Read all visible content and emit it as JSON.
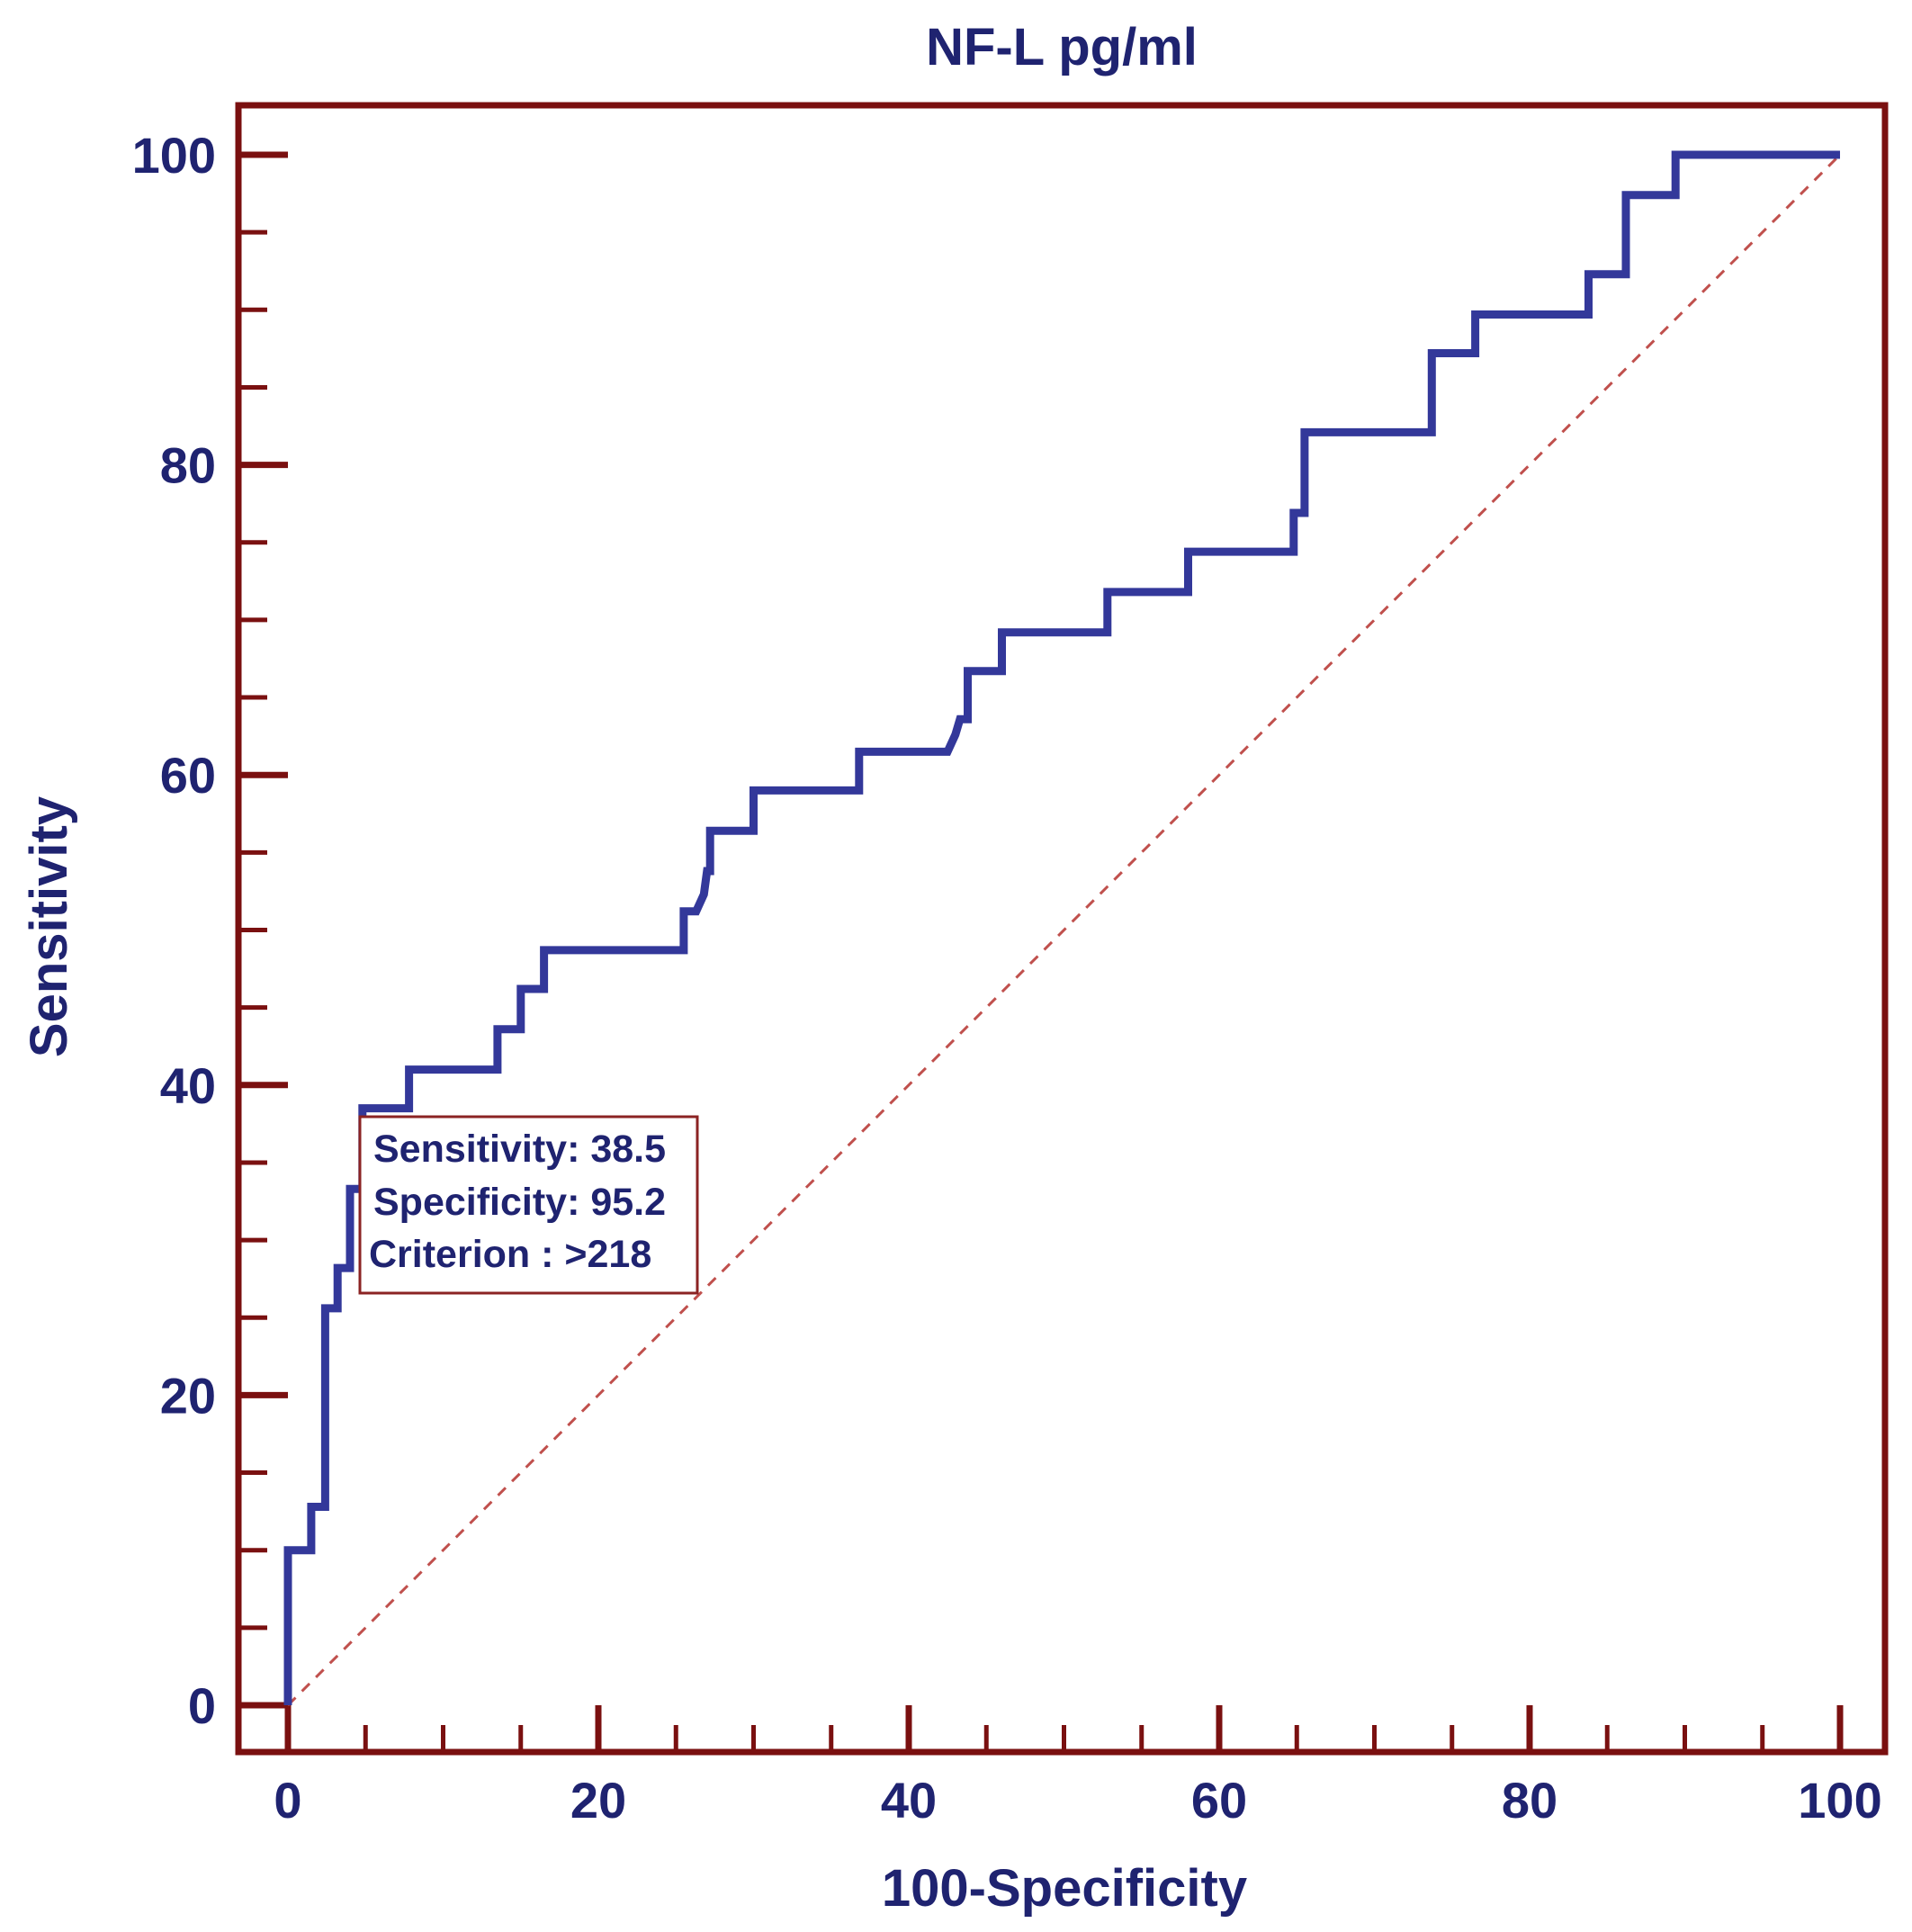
{
  "chart_data": {
    "type": "line",
    "title": "NF-L pg/ml",
    "xlabel": "100-Specificity",
    "ylabel": "Sensitivity",
    "xlim": [
      0,
      100
    ],
    "ylim": [
      0,
      100
    ],
    "x_ticks": [
      0,
      20,
      40,
      60,
      80,
      100
    ],
    "y_ticks": [
      0,
      20,
      40,
      60,
      80,
      100
    ],
    "x_tick_labels": [
      "0",
      "20",
      "40",
      "60",
      "80",
      "100"
    ],
    "y_tick_labels": [
      "0",
      "20",
      "40",
      "60",
      "80",
      "100"
    ],
    "grid": false,
    "colors": {
      "roc_line": "#33389a",
      "diagonal": "#c0504d",
      "axes": "#7a1010",
      "text": "#1f2370"
    },
    "series": [
      {
        "name": "ROC curve",
        "style": "step",
        "points": [
          [
            0,
            0
          ],
          [
            0,
            10
          ],
          [
            1.5,
            10
          ],
          [
            1.5,
            12.8
          ],
          [
            2.4,
            12.8
          ],
          [
            2.4,
            25.6
          ],
          [
            3.2,
            25.6
          ],
          [
            3.2,
            28.2
          ],
          [
            4.0,
            28.2
          ],
          [
            4.0,
            33.3
          ],
          [
            4.8,
            33.3
          ],
          [
            4.8,
            38.5
          ],
          [
            7.8,
            38.5
          ],
          [
            7.8,
            41.0
          ],
          [
            13.5,
            41.0
          ],
          [
            13.5,
            43.6
          ],
          [
            15.0,
            43.6
          ],
          [
            15.0,
            46.2
          ],
          [
            16.5,
            46.2
          ],
          [
            16.5,
            48.7
          ],
          [
            25.5,
            48.7
          ],
          [
            25.5,
            51.2
          ],
          [
            26.3,
            51.2
          ],
          [
            26.8,
            52.3
          ],
          [
            27.0,
            53.8
          ],
          [
            27.2,
            53.8
          ],
          [
            27.2,
            56.4
          ],
          [
            30.0,
            56.4
          ],
          [
            30.0,
            59.0
          ],
          [
            36.8,
            59.0
          ],
          [
            36.8,
            61.5
          ],
          [
            42.5,
            61.5
          ],
          [
            43.0,
            62.6
          ],
          [
            43.3,
            63.6
          ],
          [
            43.8,
            63.6
          ],
          [
            43.8,
            66.7
          ],
          [
            46.0,
            66.7
          ],
          [
            46.0,
            69.2
          ],
          [
            52.8,
            69.2
          ],
          [
            52.8,
            71.8
          ],
          [
            58.0,
            71.8
          ],
          [
            58.0,
            74.4
          ],
          [
            64.8,
            74.4
          ],
          [
            64.8,
            76.9
          ],
          [
            65.5,
            76.9
          ],
          [
            65.5,
            82.1
          ],
          [
            73.7,
            82.1
          ],
          [
            73.7,
            87.2
          ],
          [
            76.5,
            87.2
          ],
          [
            76.5,
            89.7
          ],
          [
            83.8,
            89.7
          ],
          [
            83.8,
            92.3
          ],
          [
            86.2,
            92.3
          ],
          [
            86.2,
            97.4
          ],
          [
            89.4,
            97.4
          ],
          [
            89.4,
            100
          ],
          [
            100,
            100
          ]
        ]
      },
      {
        "name": "Reference line",
        "style": "dashed",
        "points": [
          [
            0,
            0
          ],
          [
            100,
            100
          ]
        ]
      }
    ],
    "annotation": {
      "lines": [
        "Sensitivity: 38.5",
        "Specificity: 95.2",
        "Criterion : >218"
      ],
      "point": [
        4.8,
        38.5
      ]
    }
  }
}
